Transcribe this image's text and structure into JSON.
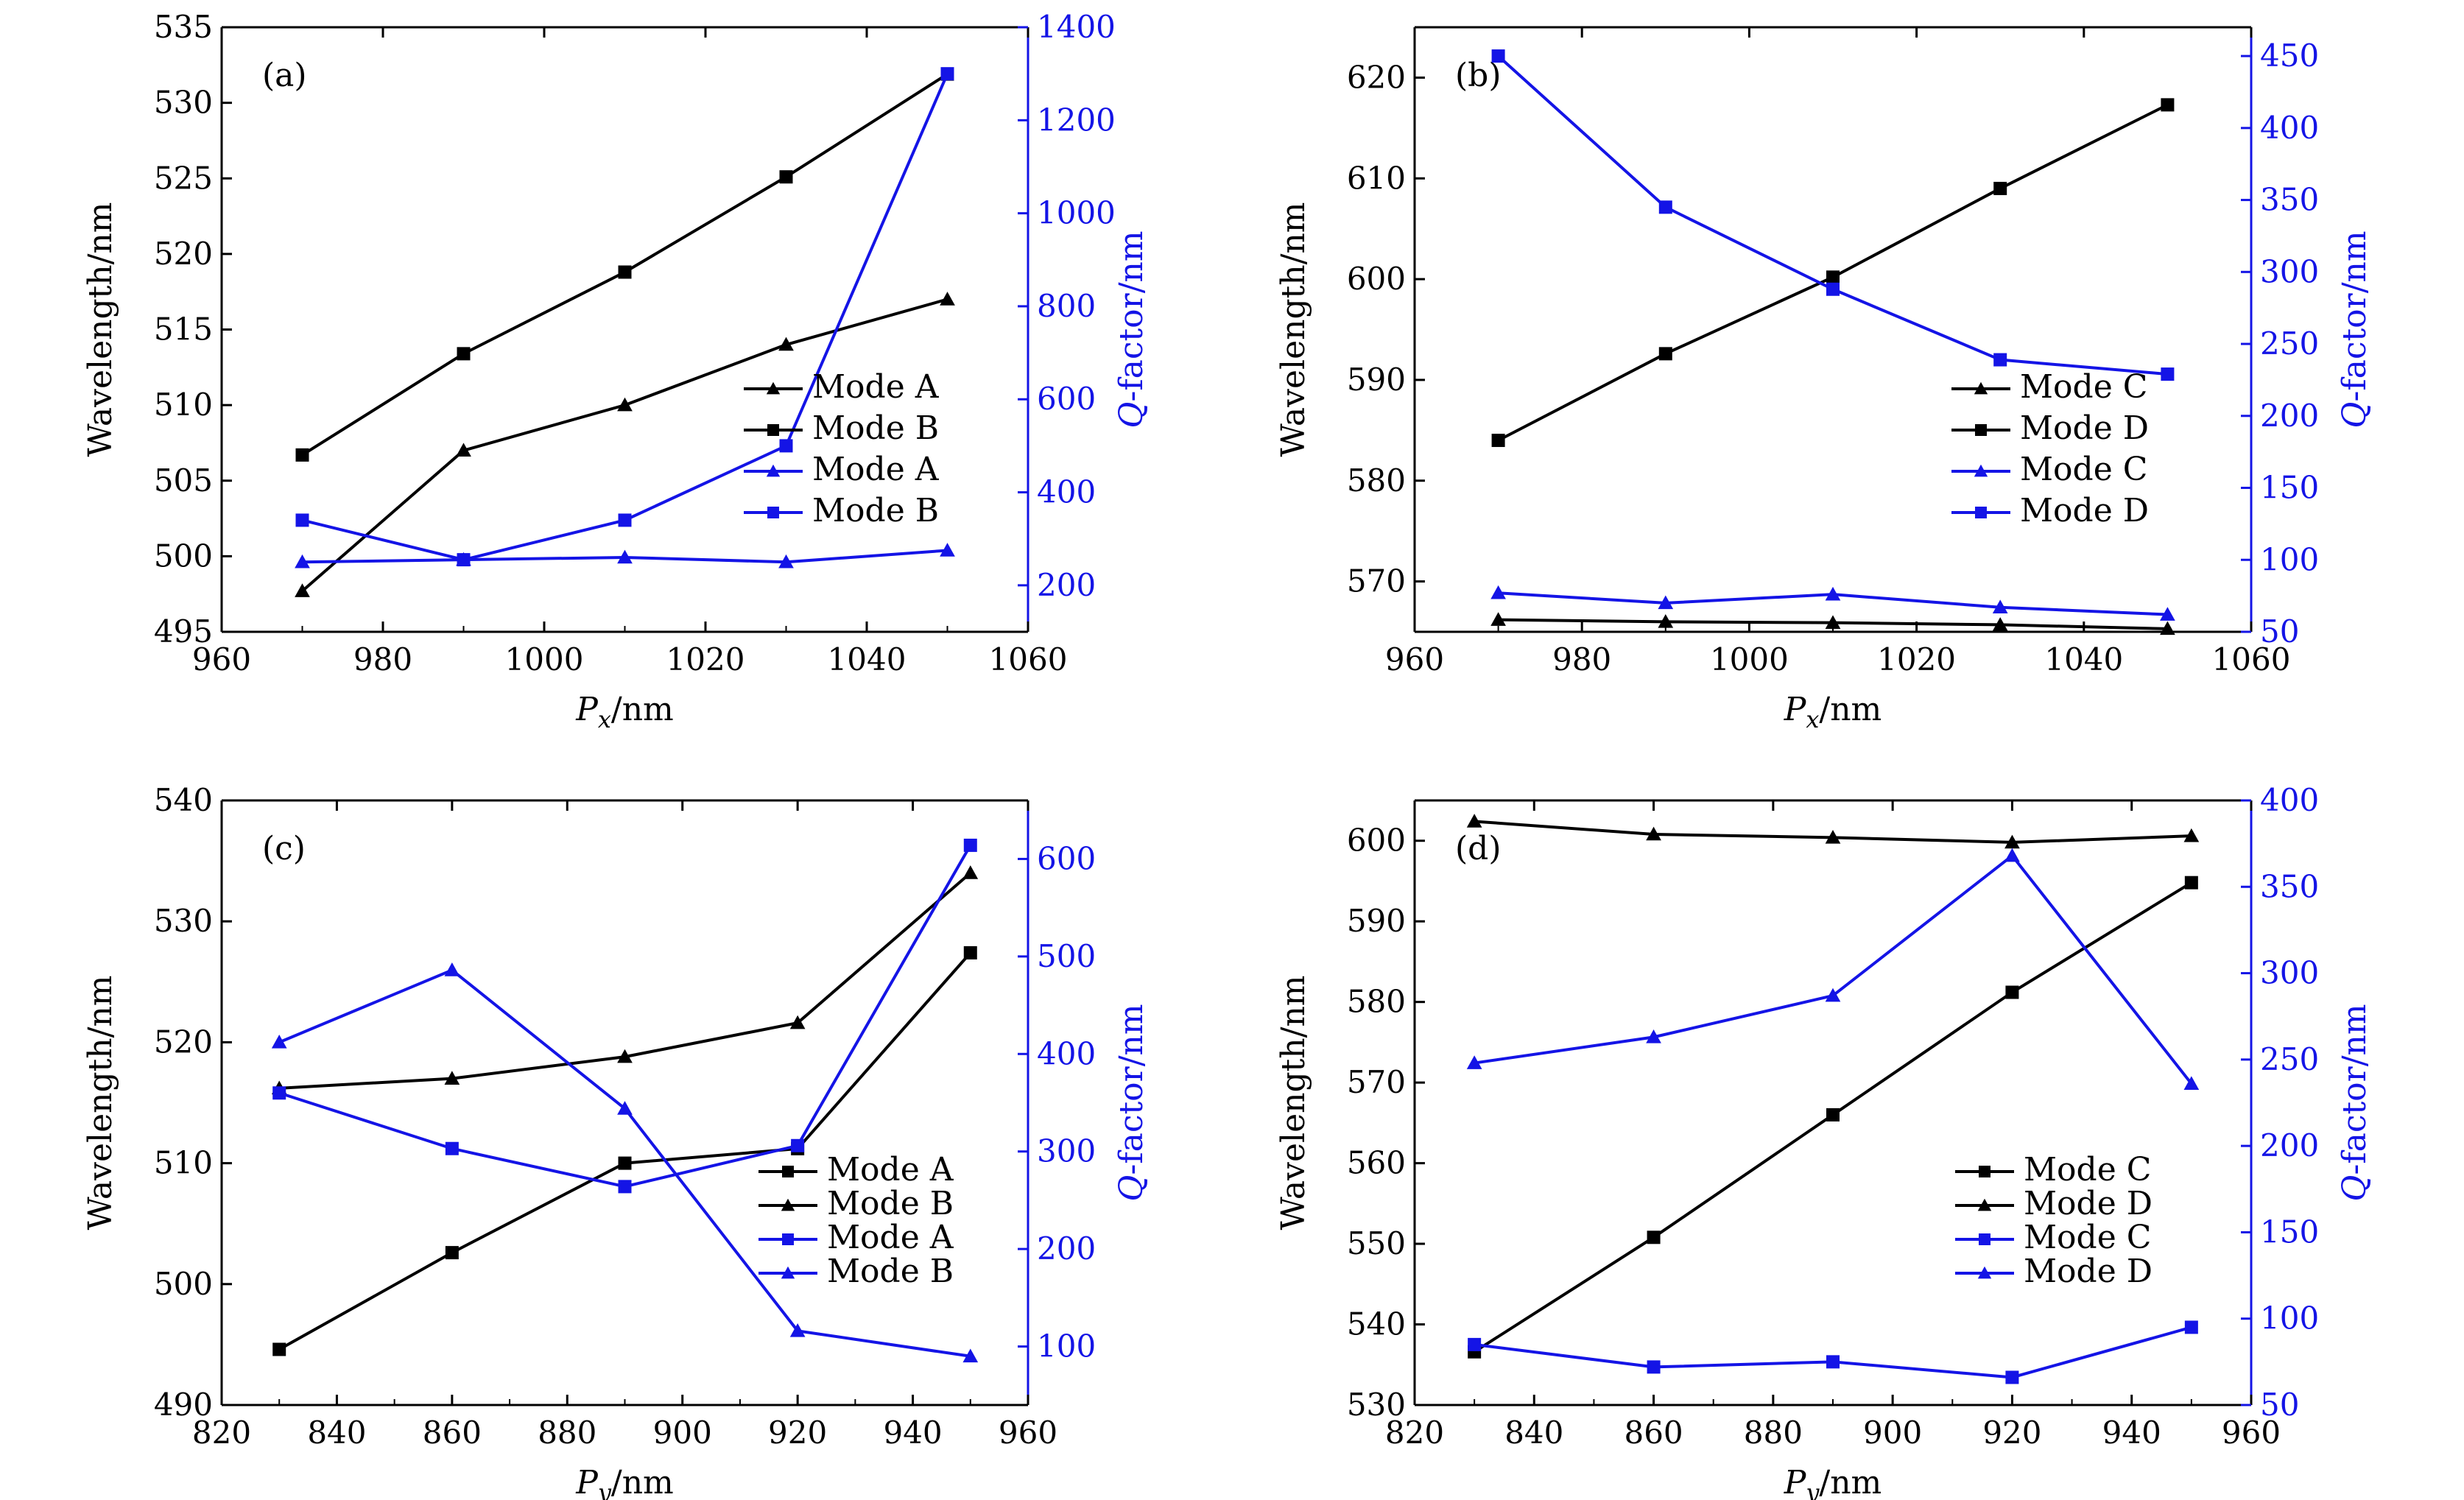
{
  "colors": {
    "black": "#000000",
    "blue": "#1414e6"
  },
  "chart_data": [
    {
      "panel": "(a)",
      "type": "line",
      "x": [
        970,
        990,
        1010,
        1030,
        1050
      ],
      "xlabel_base": "P",
      "xlabel_sub": "x",
      "xlabel_unit": "/nm",
      "xlim": [
        960,
        1060
      ],
      "xticks": [
        960,
        980,
        1000,
        1020,
        1040,
        1060
      ],
      "ylabel": "Wavelength/nm",
      "ylim": [
        495,
        535
      ],
      "yticks": [
        495,
        500,
        505,
        510,
        515,
        520,
        525,
        530,
        535
      ],
      "y2label_italic": "Q",
      "y2label_rest": "-factor/nm",
      "y2lim": [
        100,
        1400
      ],
      "y2ticks": [
        200,
        400,
        600,
        800,
        1000,
        1200,
        1400
      ],
      "series": [
        {
          "name": "Mode A",
          "axis": "left",
          "color": "black",
          "marker": "triangle",
          "values": [
            497.7,
            507.0,
            510.0,
            514.0,
            517.0
          ]
        },
        {
          "name": "Mode B",
          "axis": "left",
          "color": "black",
          "marker": "square",
          "values": [
            506.7,
            513.4,
            518.8,
            525.1,
            531.9
          ]
        },
        {
          "name": "Mode A",
          "axis": "right",
          "color": "blue",
          "marker": "triangle",
          "values": [
            250,
            255,
            260,
            250,
            275
          ]
        },
        {
          "name": "Mode B",
          "axis": "right",
          "color": "blue",
          "marker": "square",
          "values": [
            340,
            255,
            340,
            500,
            1300
          ]
        }
      ]
    },
    {
      "panel": "(b)",
      "type": "line",
      "x": [
        970,
        990,
        1010,
        1030,
        1050
      ],
      "xlabel_base": "P",
      "xlabel_sub": "x",
      "xlabel_unit": "/nm",
      "xlim": [
        960,
        1060
      ],
      "xticks": [
        960,
        980,
        1000,
        1020,
        1040,
        1060
      ],
      "ylabel": "Wavelength/nm",
      "ylim": [
        565,
        625
      ],
      "yticks": [
        570,
        580,
        590,
        600,
        610,
        620
      ],
      "y2label_italic": "Q",
      "y2label_rest": "-factor/nm",
      "y2lim": [
        50,
        470
      ],
      "y2ticks": [
        50,
        100,
        150,
        200,
        250,
        300,
        350,
        400,
        450
      ],
      "series": [
        {
          "name": "Mode C",
          "axis": "left",
          "color": "black",
          "marker": "triangle",
          "values": [
            566.2,
            566.0,
            565.9,
            565.7,
            565.3
          ]
        },
        {
          "name": "Mode D",
          "axis": "left",
          "color": "black",
          "marker": "square",
          "values": [
            584.0,
            592.6,
            600.2,
            609.0,
            617.3
          ]
        },
        {
          "name": "Mode C",
          "axis": "right",
          "color": "blue",
          "marker": "triangle",
          "values": [
            77,
            70,
            76,
            67,
            62
          ]
        },
        {
          "name": "Mode D",
          "axis": "right",
          "color": "blue",
          "marker": "square",
          "values": [
            450,
            345,
            288,
            239,
            229
          ]
        }
      ]
    },
    {
      "panel": "(c)",
      "type": "line",
      "x": [
        830,
        860,
        890,
        920,
        950
      ],
      "xlabel_base": "P",
      "xlabel_sub": "y",
      "xlabel_unit": "/nm",
      "xlim": [
        820,
        960
      ],
      "xticks": [
        820,
        840,
        860,
        880,
        900,
        920,
        940,
        960
      ],
      "ylabel": "Wavelength/nm",
      "ylim": [
        490,
        540
      ],
      "yticks": [
        490,
        500,
        510,
        520,
        530,
        540
      ],
      "y2label_italic": "Q",
      "y2label_rest": "-factor/nm",
      "y2lim": [
        40,
        660
      ],
      "y2ticks": [
        100,
        200,
        300,
        400,
        500,
        600
      ],
      "series": [
        {
          "name": "Mode A",
          "axis": "left",
          "color": "black",
          "marker": "square",
          "values": [
            494.6,
            502.6,
            510.0,
            511.2,
            527.4
          ]
        },
        {
          "name": "Mode B",
          "axis": "left",
          "color": "black",
          "marker": "triangle",
          "values": [
            516.2,
            517.0,
            518.8,
            521.6,
            534.0
          ]
        },
        {
          "name": "Mode A",
          "axis": "right",
          "color": "blue",
          "marker": "square",
          "values": [
            360,
            303,
            264,
            306,
            614
          ]
        },
        {
          "name": "Mode B",
          "axis": "right",
          "color": "blue",
          "marker": "triangle",
          "values": [
            412,
            486,
            344,
            116,
            90
          ]
        }
      ]
    },
    {
      "panel": "(d)",
      "type": "line",
      "x": [
        830,
        860,
        890,
        920,
        950
      ],
      "xlabel_base": "P",
      "xlabel_sub": "y",
      "xlabel_unit": "/nm",
      "xlim": [
        820,
        960
      ],
      "xticks": [
        820,
        840,
        860,
        880,
        900,
        920,
        940,
        960
      ],
      "ylabel": "Wavelength/nm",
      "ylim": [
        530,
        605
      ],
      "yticks": [
        530,
        540,
        550,
        560,
        570,
        580,
        590,
        600
      ],
      "y2label_italic": "Q",
      "y2label_rest": "-factor/nm",
      "y2lim": [
        50,
        400
      ],
      "y2ticks": [
        50,
        100,
        150,
        200,
        250,
        300,
        350,
        400
      ],
      "series": [
        {
          "name": "Mode C",
          "axis": "left",
          "color": "black",
          "marker": "square",
          "values": [
            536.6,
            550.8,
            566.0,
            581.2,
            594.8
          ]
        },
        {
          "name": "Mode D",
          "axis": "left",
          "color": "black",
          "marker": "triangle",
          "values": [
            602.4,
            600.8,
            600.4,
            599.8,
            600.6
          ]
        },
        {
          "name": "Mode C",
          "axis": "right",
          "color": "blue",
          "marker": "square",
          "values": [
            85,
            72,
            75,
            66,
            95
          ]
        },
        {
          "name": "Mode D",
          "axis": "right",
          "color": "blue",
          "marker": "triangle",
          "values": [
            248,
            263,
            287,
            368,
            236
          ]
        }
      ]
    }
  ]
}
